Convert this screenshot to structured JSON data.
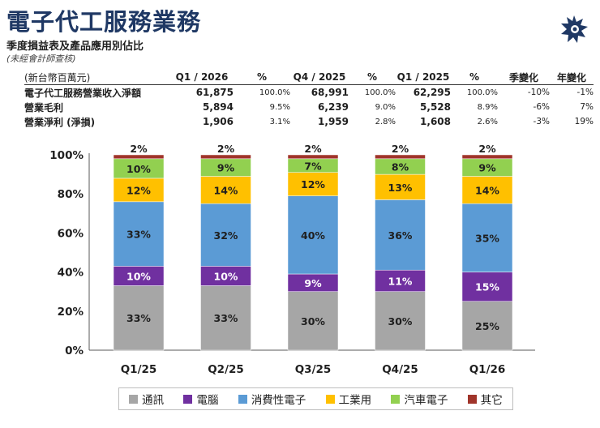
{
  "header": {
    "title": "電子代工服務業務",
    "subtitle": "季度損益表及產品應用別佔比",
    "note": "(未經會計師查核)"
  },
  "table": {
    "unit_label": "(新台幣百萬元)",
    "columns": [
      "Q1 / 2026",
      "%",
      "Q4 / 2025",
      "%",
      "Q1 / 2025",
      "%",
      "季變化",
      "年變化"
    ],
    "rows": [
      {
        "label": "電子代工服務營業收入淨額",
        "q1_2026": "61,875",
        "q1_2026_pct": "100.0%",
        "q4_2025": "68,991",
        "q4_2025_pct": "100.0%",
        "q1_2025": "62,295",
        "q1_2025_pct": "100.0%",
        "qoq": "-10%",
        "yoy": "-1%"
      },
      {
        "label": "營業毛利",
        "q1_2026": "5,894",
        "q1_2026_pct": "9.5%",
        "q4_2025": "6,239",
        "q4_2025_pct": "9.0%",
        "q1_2025": "5,528",
        "q1_2025_pct": "8.9%",
        "qoq": "-6%",
        "yoy": "7%"
      },
      {
        "label": "營業淨利 (淨損)",
        "q1_2026": "1,906",
        "q1_2026_pct": "3.1%",
        "q4_2025": "1,959",
        "q4_2025_pct": "2.8%",
        "q1_2025": "1,608",
        "q1_2025_pct": "2.6%",
        "qoq": "-3%",
        "yoy": "19%"
      }
    ]
  },
  "chart_data": {
    "type": "bar",
    "stacked": true,
    "categories": [
      "Q1/25",
      "Q2/25",
      "Q3/25",
      "Q4/25",
      "Q1/26"
    ],
    "ylim": [
      0,
      100
    ],
    "yticks": [
      "0%",
      "20%",
      "40%",
      "60%",
      "80%",
      "100%"
    ],
    "grid": false,
    "legend_position": "bottom",
    "series": [
      {
        "name": "通訊",
        "color": "#a6a6a6",
        "values": [
          33,
          33,
          30,
          30,
          25
        ]
      },
      {
        "name": "電腦",
        "color": "#7030a0",
        "values": [
          10,
          10,
          9,
          11,
          15
        ]
      },
      {
        "name": "消費性電子",
        "color": "#5b9bd5",
        "values": [
          33,
          32,
          40,
          36,
          35
        ]
      },
      {
        "name": "工業用",
        "color": "#ffc000",
        "values": [
          12,
          14,
          12,
          13,
          14
        ]
      },
      {
        "name": "汽車電子",
        "color": "#92d050",
        "values": [
          10,
          9,
          7,
          8,
          9
        ]
      },
      {
        "name": "其它",
        "color": "#a0342a",
        "values": [
          2,
          2,
          2,
          2,
          2
        ]
      }
    ]
  }
}
